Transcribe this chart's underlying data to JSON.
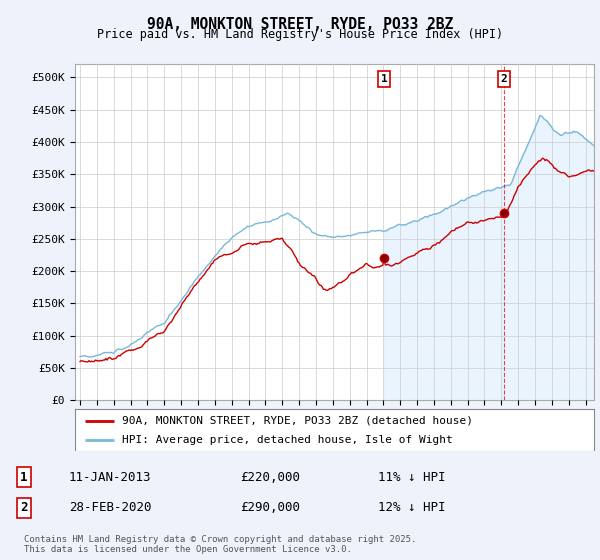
{
  "title": "90A, MONKTON STREET, RYDE, PO33 2BZ",
  "subtitle": "Price paid vs. HM Land Registry's House Price Index (HPI)",
  "ylabel_ticks": [
    "£0",
    "£50K",
    "£100K",
    "£150K",
    "£200K",
    "£250K",
    "£300K",
    "£350K",
    "£400K",
    "£450K",
    "£500K"
  ],
  "ytick_values": [
    0,
    50000,
    100000,
    150000,
    200000,
    250000,
    300000,
    350000,
    400000,
    450000,
    500000
  ],
  "ylim": [
    0,
    520000
  ],
  "xlim_start": 1994.7,
  "xlim_end": 2025.5,
  "hpi_color": "#7ab8d9",
  "hpi_fill_color": "#d6eaf8",
  "price_color": "#cc0000",
  "marker1_date": 2013.04,
  "marker1_price": 220000,
  "marker1_label": "1",
  "marker1_text": "11-JAN-2013",
  "marker1_value_text": "£220,000",
  "marker1_hpi_text": "11% ↓ HPI",
  "marker2_date": 2020.17,
  "marker2_price": 290000,
  "marker2_label": "2",
  "marker2_text": "28-FEB-2020",
  "marker2_value_text": "£290,000",
  "marker2_hpi_text": "12% ↓ HPI",
  "legend_line1": "90A, MONKTON STREET, RYDE, PO33 2BZ (detached house)",
  "legend_line2": "HPI: Average price, detached house, Isle of Wight",
  "footer": "Contains HM Land Registry data © Crown copyright and database right 2025.\nThis data is licensed under the Open Government Licence v3.0.",
  "background_color": "#eef2fb",
  "plot_bg_color": "#ffffff",
  "grid_color": "#cccccc",
  "shade_color": "#ddeeff"
}
